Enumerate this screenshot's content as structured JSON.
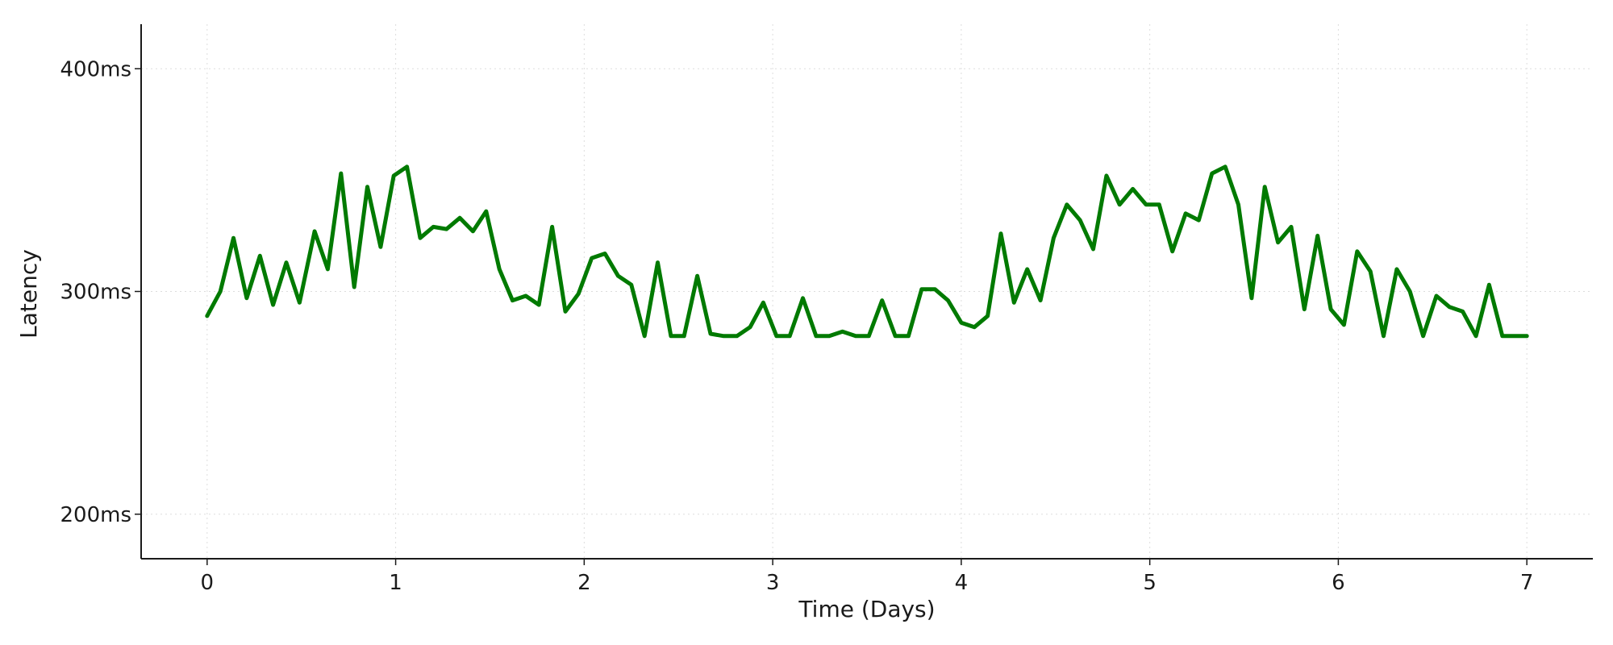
{
  "chart_data": {
    "type": "line",
    "title": "",
    "xlabel": "Time (Days)",
    "ylabel": "Latency",
    "xlim": [
      -0.35,
      7.35
    ],
    "ylim": [
      180,
      420
    ],
    "x_ticks": [
      0,
      1,
      2,
      3,
      4,
      5,
      6,
      7
    ],
    "x_tick_labels": [
      "0",
      "1",
      "2",
      "3",
      "4",
      "5",
      "6",
      "7"
    ],
    "y_ticks": [
      200,
      300,
      400
    ],
    "y_tick_labels": [
      "200ms",
      "300ms",
      "400ms"
    ],
    "grid": true,
    "legend": "none",
    "colors": {
      "line": "#007a00",
      "axis": "#1a1a1a",
      "grid": "#dddddd"
    },
    "series": [
      {
        "x": [
          0,
          0.07,
          0.14,
          0.21,
          0.28,
          0.35,
          0.42,
          0.49,
          0.57,
          0.64,
          0.71,
          0.78,
          0.85,
          0.92,
          0.99,
          1.06,
          1.13,
          1.2,
          1.27,
          1.34,
          1.41,
          1.48,
          1.55,
          1.62,
          1.69,
          1.76,
          1.83,
          1.9,
          1.97,
          2.04,
          2.11,
          2.18,
          2.25,
          2.32,
          2.39,
          2.46,
          2.53,
          2.6,
          2.67,
          2.74,
          2.81,
          2.88,
          2.95,
          3.02,
          3.09,
          3.16,
          3.23,
          3.3,
          3.37,
          3.44,
          3.51,
          3.58,
          3.65,
          3.72,
          3.79,
          3.86,
          3.93,
          4.0,
          4.07,
          4.14,
          4.21,
          4.28,
          4.35,
          4.42,
          4.49,
          4.56,
          4.63,
          4.7,
          4.77,
          4.84,
          4.91,
          4.98,
          5.05,
          5.12,
          5.19,
          5.26,
          5.33,
          5.4,
          5.47,
          5.54,
          5.61,
          5.68,
          5.75,
          5.82,
          5.89,
          5.96,
          6.03,
          6.1,
          6.17,
          6.24,
          6.31,
          6.38,
          6.45,
          6.52,
          6.59,
          6.66,
          6.73,
          6.8,
          6.87,
          6.94,
          7.0
        ],
        "values": [
          289,
          300,
          324,
          297,
          316,
          294,
          313,
          295,
          327,
          310,
          353,
          302,
          347,
          320,
          352,
          356,
          324,
          329,
          328,
          333,
          327,
          336,
          310,
          296,
          298,
          294,
          329,
          291,
          299,
          315,
          317,
          307,
          303,
          280,
          313,
          280,
          280,
          307,
          281,
          280,
          280,
          284,
          295,
          280,
          280,
          297,
          280,
          280,
          282,
          280,
          280,
          296,
          280,
          280,
          301,
          301,
          296,
          286,
          284,
          289,
          326,
          295,
          310,
          296,
          324,
          339,
          332,
          319,
          352,
          339,
          346,
          339,
          339,
          318,
          335,
          332,
          353,
          356,
          339,
          297,
          347,
          322,
          329,
          292,
          325,
          292,
          285,
          318,
          309,
          280,
          310,
          300,
          280,
          298,
          293,
          291,
          280,
          303,
          280,
          280,
          280
        ]
      }
    ]
  }
}
